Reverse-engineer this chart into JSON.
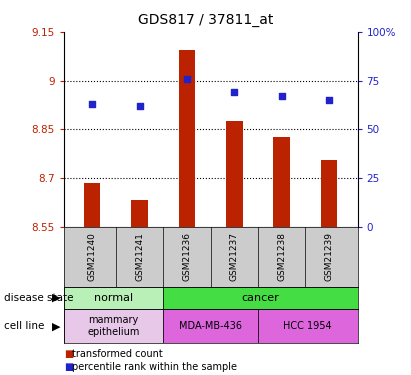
{
  "title": "GDS817 / 37811_at",
  "samples": [
    "GSM21240",
    "GSM21241",
    "GSM21236",
    "GSM21237",
    "GSM21238",
    "GSM21239"
  ],
  "bar_values": [
    8.685,
    8.632,
    9.095,
    8.875,
    8.828,
    8.755
  ],
  "percentile_values": [
    63,
    62,
    76,
    69,
    67,
    65
  ],
  "ylim_left": [
    8.55,
    9.15
  ],
  "ylim_right": [
    0,
    100
  ],
  "yticks_left": [
    8.55,
    8.7,
    8.85,
    9.0,
    9.15
  ],
  "yticks_left_labels": [
    "8.55",
    "8.7",
    "8.85",
    "9",
    "9.15"
  ],
  "yticks_right": [
    0,
    25,
    50,
    75,
    100
  ],
  "yticks_right_labels": [
    "0",
    "25",
    "50",
    "75",
    "100%"
  ],
  "grid_lines": [
    8.7,
    8.85,
    9.0
  ],
  "bar_color": "#bb2200",
  "dot_color": "#2222cc",
  "bar_bottom": 8.55,
  "color_normal_light": "#b8f0b8",
  "color_normal_dark": "#44dd44",
  "color_cancer": "#44dd44",
  "color_mammary": "#e8c8e8",
  "color_mda": "#dd66dd",
  "color_hcc": "#dd66dd",
  "bg_sample_labels": "#cccccc",
  "fig_bg": "#ffffff"
}
